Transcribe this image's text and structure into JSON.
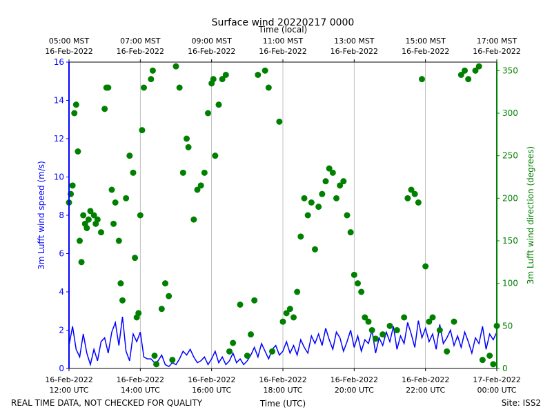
{
  "chart_data": {
    "type": "line",
    "title": "Surface wind 20220217 0000",
    "x2label": "Time (local)",
    "xlabel": "Time (UTC)",
    "ylabel": "3m Lufft wind speed (m/s)",
    "y2label": "3m Lufft wind direction (degrees)",
    "footer_left": "REAL TIME DATA, NOT CHECKED FOR QUALITY",
    "footer_right": "Site: ISS2",
    "xlim": [
      12,
      24
    ],
    "xticks": [
      {
        "value": 12,
        "label": "16-Feb-2022\n12:00 UTC"
      },
      {
        "value": 14,
        "label": "16-Feb-2022\n14:00 UTC"
      },
      {
        "value": 16,
        "label": "16-Feb-2022\n16:00 UTC"
      },
      {
        "value": 18,
        "label": "16-Feb-2022\n18:00 UTC"
      },
      {
        "value": 20,
        "label": "16-Feb-2022\n20:00 UTC"
      },
      {
        "value": 22,
        "label": "16-Feb-2022\n22:00 UTC"
      },
      {
        "value": 24,
        "label": "17-Feb-2022\n00:00 UTC"
      }
    ],
    "x2ticks": [
      {
        "value": 12,
        "label": "05:00 MST\n16-Feb-2022"
      },
      {
        "value": 14,
        "label": "07:00 MST\n16-Feb-2022"
      },
      {
        "value": 16,
        "label": "09:00 MST\n16-Feb-2022"
      },
      {
        "value": 18,
        "label": "11:00 MST\n16-Feb-2022"
      },
      {
        "value": 20,
        "label": "13:00 MST\n16-Feb-2022"
      },
      {
        "value": 22,
        "label": "15:00 MST\n16-Feb-2022"
      },
      {
        "value": 24,
        "label": "17:00 MST\n16-Feb-2022"
      }
    ],
    "ylim": [
      0,
      16
    ],
    "yticks": [
      0,
      2,
      4,
      6,
      8,
      10,
      12,
      14,
      16
    ],
    "y2lim": [
      0,
      360
    ],
    "y2ticks": [
      0,
      50,
      100,
      150,
      200,
      250,
      300,
      350
    ],
    "grid": true,
    "series": [
      {
        "type": "line",
        "color": "#0000ff",
        "x": [
          12.0,
          12.1,
          12.2,
          12.3,
          12.4,
          12.5,
          12.6,
          12.7,
          12.8,
          12.9,
          13.0,
          13.1,
          13.2,
          13.3,
          13.4,
          13.5,
          13.6,
          13.7,
          13.8,
          13.9,
          14.0,
          14.1,
          14.2,
          14.3,
          14.4,
          14.5,
          14.6,
          14.7,
          14.8,
          14.9,
          15.0,
          15.1,
          15.2,
          15.3,
          15.4,
          15.5,
          15.6,
          15.7,
          15.8,
          15.9,
          16.0,
          16.1,
          16.2,
          16.3,
          16.4,
          16.5,
          16.6,
          16.7,
          16.8,
          16.9,
          17.0,
          17.1,
          17.2,
          17.3,
          17.4,
          17.5,
          17.6,
          17.7,
          17.8,
          17.9,
          18.0,
          18.1,
          18.2,
          18.3,
          18.4,
          18.5,
          18.6,
          18.7,
          18.8,
          18.9,
          19.0,
          19.1,
          19.2,
          19.3,
          19.4,
          19.5,
          19.6,
          19.7,
          19.8,
          19.9,
          20.0,
          20.1,
          20.2,
          20.3,
          20.4,
          20.5,
          20.6,
          20.7,
          20.8,
          20.9,
          21.0,
          21.1,
          21.2,
          21.3,
          21.4,
          21.5,
          21.6,
          21.7,
          21.8,
          21.9,
          22.0,
          22.1,
          22.2,
          22.3,
          22.4,
          22.5,
          22.6,
          22.7,
          22.8,
          22.9,
          23.0,
          23.1,
          23.2,
          23.3,
          23.4,
          23.5,
          23.6,
          23.7,
          23.8,
          23.9,
          24.0
        ],
        "values": [
          1.2,
          2.2,
          1.0,
          0.6,
          1.8,
          0.8,
          0.2,
          1.0,
          0.4,
          1.4,
          1.6,
          0.8,
          1.9,
          2.4,
          1.2,
          2.7,
          0.9,
          0.4,
          1.8,
          1.4,
          1.9,
          0.6,
          0.5,
          0.5,
          0.3,
          0.4,
          0.7,
          0.2,
          0.1,
          0.3,
          0.2,
          0.5,
          0.9,
          0.7,
          1.0,
          0.6,
          0.3,
          0.4,
          0.6,
          0.2,
          0.5,
          0.9,
          0.3,
          0.6,
          0.2,
          0.4,
          0.8,
          0.3,
          0.5,
          0.2,
          0.4,
          0.7,
          1.1,
          0.6,
          1.3,
          0.9,
          0.5,
          1.0,
          1.2,
          0.7,
          0.9,
          1.4,
          0.8,
          1.2,
          0.7,
          1.5,
          1.1,
          0.8,
          1.7,
          1.3,
          1.8,
          1.2,
          2.1,
          1.5,
          1.0,
          1.9,
          1.6,
          0.9,
          1.4,
          2.0,
          1.1,
          1.7,
          0.9,
          1.5,
          1.3,
          2.0,
          0.8,
          1.6,
          1.2,
          1.9,
          1.4,
          2.2,
          1.0,
          1.7,
          1.3,
          2.4,
          1.8,
          1.1,
          2.5,
          1.6,
          2.1,
          1.4,
          1.8,
          1.0,
          2.3,
          1.3,
          1.6,
          2.0,
          1.2,
          1.7,
          1.1,
          1.9,
          1.4,
          0.8,
          1.6,
          1.3,
          2.2,
          1.0,
          1.8,
          1.5,
          1.9
        ]
      },
      {
        "type": "scatter",
        "axis": "y2",
        "color": "#008000",
        "x": [
          12.0,
          12.05,
          12.1,
          12.15,
          12.2,
          12.25,
          12.3,
          12.35,
          12.4,
          12.45,
          12.5,
          12.55,
          12.6,
          12.7,
          12.75,
          12.8,
          12.9,
          13.0,
          13.05,
          13.1,
          13.2,
          13.25,
          13.3,
          13.4,
          13.45,
          13.5,
          13.6,
          13.7,
          13.8,
          13.85,
          13.9,
          13.95,
          14.0,
          14.05,
          14.1,
          14.3,
          14.35,
          14.4,
          14.45,
          14.6,
          14.7,
          14.8,
          14.9,
          15.0,
          15.1,
          15.2,
          15.3,
          15.35,
          15.5,
          15.6,
          15.7,
          15.8,
          15.9,
          16.0,
          16.05,
          16.1,
          16.2,
          16.3,
          16.4,
          16.5,
          16.6,
          16.8,
          17.0,
          17.1,
          17.2,
          17.3,
          17.5,
          17.6,
          17.7,
          17.9,
          18.0,
          18.1,
          18.2,
          18.3,
          18.4,
          18.5,
          18.6,
          18.7,
          18.8,
          18.9,
          19.0,
          19.1,
          19.2,
          19.3,
          19.4,
          19.5,
          19.6,
          19.7,
          19.8,
          19.9,
          20.0,
          20.1,
          20.2,
          20.3,
          20.4,
          20.5,
          20.6,
          20.8,
          21.0,
          21.2,
          21.4,
          21.5,
          21.6,
          21.7,
          21.8,
          21.9,
          22.0,
          22.1,
          22.2,
          22.4,
          22.6,
          22.8,
          23.0,
          23.1,
          23.2,
          23.4,
          23.5,
          23.6,
          23.8,
          23.9,
          24.0
        ],
        "values": [
          195,
          205,
          215,
          300,
          310,
          255,
          150,
          125,
          180,
          170,
          165,
          175,
          185,
          180,
          170,
          175,
          160,
          305,
          330,
          330,
          210,
          170,
          195,
          150,
          100,
          80,
          200,
          250,
          230,
          130,
          60,
          65,
          180,
          280,
          330,
          340,
          350,
          15,
          5,
          70,
          100,
          85,
          10,
          355,
          330,
          230,
          270,
          260,
          175,
          210,
          215,
          230,
          300,
          335,
          340,
          250,
          310,
          340,
          345,
          20,
          30,
          75,
          15,
          40,
          80,
          345,
          350,
          330,
          20,
          290,
          55,
          65,
          70,
          60,
          90,
          155,
          200,
          180,
          195,
          140,
          190,
          205,
          220,
          235,
          230,
          200,
          215,
          220,
          180,
          160,
          110,
          100,
          90,
          60,
          55,
          45,
          35,
          40,
          50,
          45,
          60,
          200,
          210,
          205,
          195,
          340,
          120,
          55,
          60,
          45,
          20,
          55,
          345,
          350,
          340,
          350,
          355,
          10,
          15,
          5,
          50
        ]
      }
    ]
  }
}
